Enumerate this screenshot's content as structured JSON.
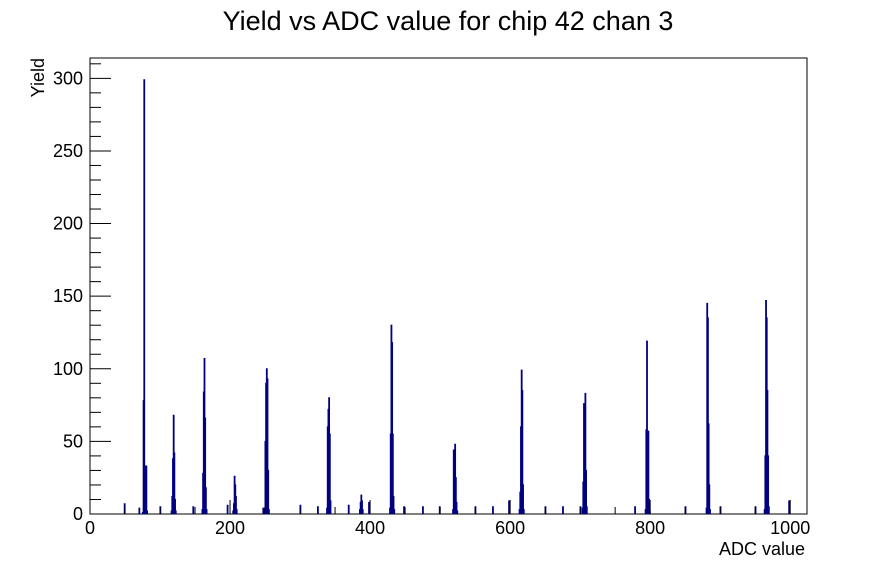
{
  "chart_data": {
    "type": "bar",
    "title": "Yield vs ADC value for chip 42 chan 3",
    "xlabel": "ADC value",
    "ylabel": "Yield",
    "xlim": [
      0,
      1024
    ],
    "ylim": [
      0,
      314
    ],
    "x_ticks": [
      0,
      200,
      400,
      600,
      800,
      1000
    ],
    "y_ticks": [
      0,
      50,
      100,
      150,
      200,
      250,
      300
    ],
    "grid": false,
    "legend": "none",
    "line_color": "#000080",
    "bins": [
      {
        "x": 49,
        "y": 7
      },
      {
        "x": 70,
        "y": 4
      },
      {
        "x": 75,
        "y": 1
      },
      {
        "x": 76,
        "y": 78
      },
      {
        "x": 77,
        "y": 299
      },
      {
        "x": 78,
        "y": 33
      },
      {
        "x": 79,
        "y": 29
      },
      {
        "x": 80,
        "y": 33
      },
      {
        "x": 81,
        "y": 2
      },
      {
        "x": 100,
        "y": 5
      },
      {
        "x": 116,
        "y": 2
      },
      {
        "x": 117,
        "y": 12
      },
      {
        "x": 118,
        "y": 38
      },
      {
        "x": 119,
        "y": 68
      },
      {
        "x": 120,
        "y": 42
      },
      {
        "x": 121,
        "y": 10
      },
      {
        "x": 122,
        "y": 2
      },
      {
        "x": 147,
        "y": 5
      },
      {
        "x": 160,
        "y": 3
      },
      {
        "x": 161,
        "y": 28
      },
      {
        "x": 162,
        "y": 84
      },
      {
        "x": 163,
        "y": 107
      },
      {
        "x": 164,
        "y": 66
      },
      {
        "x": 165,
        "y": 18
      },
      {
        "x": 166,
        "y": 3
      },
      {
        "x": 196,
        "y": 6
      },
      {
        "x": 204,
        "y": 2
      },
      {
        "x": 205,
        "y": 7
      },
      {
        "x": 206,
        "y": 26
      },
      {
        "x": 207,
        "y": 20
      },
      {
        "x": 208,
        "y": 12
      },
      {
        "x": 209,
        "y": 3
      },
      {
        "x": 247,
        "y": 4
      },
      {
        "x": 249,
        "y": 4
      },
      {
        "x": 250,
        "y": 50
      },
      {
        "x": 251,
        "y": 90
      },
      {
        "x": 252,
        "y": 100
      },
      {
        "x": 253,
        "y": 93
      },
      {
        "x": 254,
        "y": 30
      },
      {
        "x": 255,
        "y": 3
      },
      {
        "x": 300,
        "y": 6
      },
      {
        "x": 325,
        "y": 5
      },
      {
        "x": 338,
        "y": 4
      },
      {
        "x": 339,
        "y": 60
      },
      {
        "x": 340,
        "y": 72
      },
      {
        "x": 341,
        "y": 80
      },
      {
        "x": 342,
        "y": 55
      },
      {
        "x": 343,
        "y": 9
      },
      {
        "x": 369,
        "y": 6
      },
      {
        "x": 385,
        "y": 3
      },
      {
        "x": 386,
        "y": 8
      },
      {
        "x": 387,
        "y": 13
      },
      {
        "x": 388,
        "y": 9
      },
      {
        "x": 389,
        "y": 3
      },
      {
        "x": 398,
        "y": 8
      },
      {
        "x": 428,
        "y": 4
      },
      {
        "x": 429,
        "y": 55
      },
      {
        "x": 430,
        "y": 130
      },
      {
        "x": 431,
        "y": 118
      },
      {
        "x": 432,
        "y": 55
      },
      {
        "x": 433,
        "y": 12
      },
      {
        "x": 434,
        "y": 3
      },
      {
        "x": 448,
        "y": 5
      },
      {
        "x": 475,
        "y": 5
      },
      {
        "x": 499,
        "y": 5
      },
      {
        "x": 518,
        "y": 3
      },
      {
        "x": 519,
        "y": 44
      },
      {
        "x": 520,
        "y": 43
      },
      {
        "x": 521,
        "y": 48
      },
      {
        "x": 522,
        "y": 25
      },
      {
        "x": 523,
        "y": 8
      },
      {
        "x": 524,
        "y": 2
      },
      {
        "x": 550,
        "y": 5
      },
      {
        "x": 575,
        "y": 5
      },
      {
        "x": 598,
        "y": 9
      },
      {
        "x": 613,
        "y": 3
      },
      {
        "x": 614,
        "y": 15
      },
      {
        "x": 615,
        "y": 60
      },
      {
        "x": 616,
        "y": 99
      },
      {
        "x": 617,
        "y": 85
      },
      {
        "x": 618,
        "y": 20
      },
      {
        "x": 619,
        "y": 3
      },
      {
        "x": 650,
        "y": 5
      },
      {
        "x": 675,
        "y": 5
      },
      {
        "x": 700,
        "y": 5
      },
      {
        "x": 703,
        "y": 4
      },
      {
        "x": 704,
        "y": 22
      },
      {
        "x": 705,
        "y": 76
      },
      {
        "x": 706,
        "y": 72
      },
      {
        "x": 707,
        "y": 83
      },
      {
        "x": 708,
        "y": 30
      },
      {
        "x": 709,
        "y": 5
      },
      {
        "x": 778,
        "y": 5
      },
      {
        "x": 793,
        "y": 3
      },
      {
        "x": 794,
        "y": 58
      },
      {
        "x": 795,
        "y": 119
      },
      {
        "x": 796,
        "y": 20
      },
      {
        "x": 797,
        "y": 57
      },
      {
        "x": 798,
        "y": 10
      },
      {
        "x": 799,
        "y": 2
      },
      {
        "x": 850,
        "y": 5
      },
      {
        "x": 880,
        "y": 4
      },
      {
        "x": 881,
        "y": 145
      },
      {
        "x": 882,
        "y": 135
      },
      {
        "x": 883,
        "y": 62
      },
      {
        "x": 884,
        "y": 20
      },
      {
        "x": 885,
        "y": 3
      },
      {
        "x": 900,
        "y": 5
      },
      {
        "x": 950,
        "y": 5
      },
      {
        "x": 963,
        "y": 3
      },
      {
        "x": 964,
        "y": 40
      },
      {
        "x": 965,
        "y": 147
      },
      {
        "x": 966,
        "y": 135
      },
      {
        "x": 967,
        "y": 85
      },
      {
        "x": 968,
        "y": 40
      },
      {
        "x": 969,
        "y": 5
      },
      {
        "x": 998,
        "y": 9
      }
    ]
  }
}
